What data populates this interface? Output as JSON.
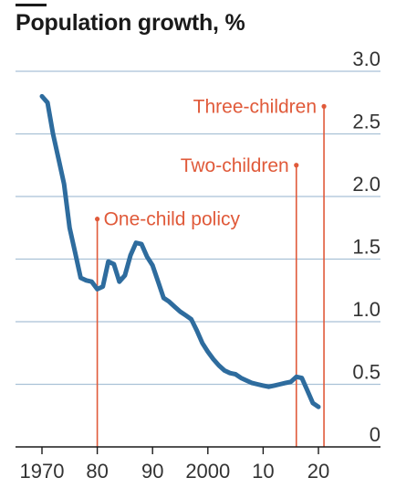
{
  "chart_data": {
    "type": "line",
    "title": "Population growth, %",
    "xlabel": "",
    "ylabel": "",
    "xlim": [
      1968,
      2022
    ],
    "ylim": [
      0,
      3.0
    ],
    "grid": true,
    "x_ticks": [
      1970,
      1980,
      1990,
      2000,
      2010,
      2020
    ],
    "x_tick_labels": [
      "1970",
      "80",
      "90",
      "2000",
      "10",
      "20"
    ],
    "y_ticks": [
      0,
      0.5,
      1.0,
      1.5,
      2.0,
      2.5,
      3.0
    ],
    "y_tick_labels": [
      "0",
      "0.5",
      "1.0",
      "1.5",
      "2.0",
      "2.5",
      "3.0"
    ],
    "series": [
      {
        "name": "",
        "x": [
          1970,
          1971,
          1972,
          1973,
          1974,
          1975,
          1976,
          1977,
          1978,
          1979,
          1980,
          1981,
          1982,
          1983,
          1984,
          1985,
          1986,
          1987,
          1988,
          1989,
          1990,
          1991,
          1992,
          1993,
          1994,
          1995,
          1996,
          1997,
          1998,
          1999,
          2000,
          2001,
          2002,
          2003,
          2004,
          2005,
          2006,
          2007,
          2008,
          2009,
          2010,
          2011,
          2012,
          2013,
          2014,
          2015,
          2016,
          2017,
          2018,
          2019,
          2020
        ],
        "values": [
          2.8,
          2.75,
          2.5,
          2.3,
          2.1,
          1.75,
          1.55,
          1.35,
          1.33,
          1.32,
          1.26,
          1.28,
          1.48,
          1.46,
          1.32,
          1.37,
          1.53,
          1.63,
          1.62,
          1.52,
          1.45,
          1.32,
          1.19,
          1.16,
          1.12,
          1.08,
          1.05,
          1.02,
          0.93,
          0.83,
          0.76,
          0.7,
          0.65,
          0.61,
          0.59,
          0.58,
          0.55,
          0.53,
          0.51,
          0.5,
          0.49,
          0.48,
          0.49,
          0.5,
          0.51,
          0.52,
          0.56,
          0.55,
          0.45,
          0.35,
          0.32
        ],
        "color": "#2e6c9e"
      }
    ],
    "annotations": [
      {
        "label": "One-child policy",
        "x": 1980,
        "y": 1.82
      },
      {
        "label": "Two-children",
        "x": 2016,
        "y": 2.25
      },
      {
        "label": "Three-children",
        "x": 2021,
        "y": 2.72
      }
    ],
    "colors": {
      "line": "#2e6c9e",
      "annotation": "#e05a3a",
      "grid": "#a9c1d6",
      "axis": "#1a1a1a",
      "tick_text": "#333333"
    }
  }
}
